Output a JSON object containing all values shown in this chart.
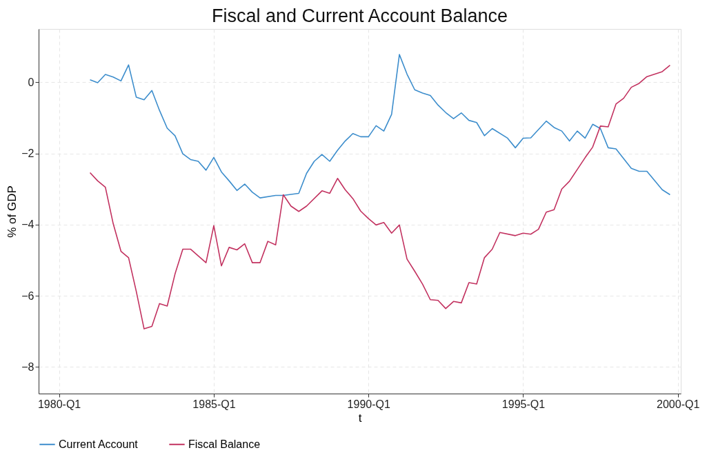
{
  "chart_data": {
    "type": "line",
    "title": "Fiscal and Current Account Balance",
    "xlabel": "t",
    "ylabel": "% of GDP",
    "xlim": [
      "1979-05-05",
      "2000-02-05"
    ],
    "ylim": [
      -8.75,
      1.5
    ],
    "xticks": [
      {
        "value": "1980-01",
        "label": "1980-Q1"
      },
      {
        "value": "1985-01",
        "label": "1985-Q1"
      },
      {
        "value": "1990-01",
        "label": "1990-Q1"
      },
      {
        "value": "1995-01",
        "label": "1995-Q1"
      },
      {
        "value": "2000-01",
        "label": "2000-Q1"
      }
    ],
    "yticks": [
      -8,
      -6,
      -4,
      -2,
      0
    ],
    "grid": true,
    "legend": "bottom",
    "line_style": "solid",
    "series": [
      {
        "name": "Current Account",
        "color": "#3c8dcc",
        "x": [
          "1981-01",
          "1981-04",
          "1981-07",
          "1981-10",
          "1982-01",
          "1982-04",
          "1982-07",
          "1982-10",
          "1983-01",
          "1983-04",
          "1983-07",
          "1983-10",
          "1984-01",
          "1984-04",
          "1984-07",
          "1984-10",
          "1985-01",
          "1985-04",
          "1985-07",
          "1985-10",
          "1986-01",
          "1986-04",
          "1986-07",
          "1987-01",
          "1987-04",
          "1987-10",
          "1988-01",
          "1988-04",
          "1988-07",
          "1988-10",
          "1989-01",
          "1989-04",
          "1989-07",
          "1989-10",
          "1990-01",
          "1990-04",
          "1990-07",
          "1990-10",
          "1991-01",
          "1991-04",
          "1991-07",
          "1991-10",
          "1992-01",
          "1992-04",
          "1992-07",
          "1992-10",
          "1993-01",
          "1993-04",
          "1993-07",
          "1993-10",
          "1994-01",
          "1994-07",
          "1994-10",
          "1995-01",
          "1995-04",
          "1995-10",
          "1996-01",
          "1996-04",
          "1996-07",
          "1996-10",
          "1997-01",
          "1997-04",
          "1997-07",
          "1997-10",
          "1998-01",
          "1998-07",
          "1998-10",
          "1999-01",
          "1999-07",
          "1999-10"
        ],
        "values": [
          0.07,
          -0.01,
          0.22,
          0.15,
          0.04,
          0.49,
          -0.42,
          -0.49,
          -0.23,
          -0.79,
          -1.29,
          -1.5,
          -2.01,
          -2.17,
          -2.22,
          -2.47,
          -2.11,
          -2.52,
          -2.77,
          -3.04,
          -2.86,
          -3.09,
          -3.25,
          -3.18,
          -3.18,
          -3.12,
          -2.56,
          -2.22,
          -2.03,
          -2.22,
          -1.91,
          -1.65,
          -1.44,
          -1.53,
          -1.53,
          -1.22,
          -1.37,
          -0.9,
          0.78,
          0.23,
          -0.21,
          -0.3,
          -0.37,
          -0.64,
          -0.85,
          -1.02,
          -0.86,
          -1.07,
          -1.13,
          -1.5,
          -1.3,
          -1.57,
          -1.84,
          -1.57,
          -1.56,
          -1.09,
          -1.27,
          -1.37,
          -1.65,
          -1.37,
          -1.57,
          -1.18,
          -1.3,
          -1.84,
          -1.87,
          -2.42,
          -2.5,
          -2.5,
          -3.02,
          -3.16
        ]
      },
      {
        "name": "Fiscal Balance",
        "color": "#c2315f",
        "x": [
          "1981-01",
          "1981-04",
          "1981-07",
          "1981-10",
          "1982-01",
          "1982-04",
          "1982-07",
          "1982-10",
          "1983-01",
          "1983-04",
          "1983-07",
          "1983-10",
          "1984-01",
          "1984-04",
          "1984-10",
          "1985-01",
          "1985-04",
          "1985-07",
          "1985-10",
          "1986-01",
          "1986-04",
          "1986-07",
          "1986-10",
          "1987-01",
          "1987-04",
          "1987-07",
          "1987-10",
          "1988-01",
          "1988-07",
          "1988-10",
          "1989-01",
          "1989-04",
          "1989-07",
          "1989-10",
          "1990-01",
          "1990-04",
          "1990-07",
          "1990-10",
          "1991-01",
          "1991-04",
          "1991-07",
          "1991-10",
          "1992-01",
          "1992-04",
          "1992-07",
          "1992-10",
          "1993-01",
          "1993-04",
          "1993-07",
          "1993-10",
          "1994-01",
          "1994-04",
          "1994-10",
          "1995-01",
          "1995-04",
          "1995-07",
          "1995-10",
          "1996-01",
          "1996-04",
          "1996-07",
          "1996-10",
          "1997-01",
          "1997-04",
          "1997-07",
          "1997-10",
          "1998-01",
          "1998-04",
          "1998-07",
          "1998-10",
          "1999-01",
          "1999-07",
          "1999-10"
        ],
        "values": [
          -2.54,
          -2.77,
          -2.95,
          -3.97,
          -4.75,
          -4.93,
          -5.88,
          -6.93,
          -6.86,
          -6.22,
          -6.29,
          -5.39,
          -4.69,
          -4.69,
          -5.07,
          -4.03,
          -5.16,
          -4.64,
          -4.71,
          -4.54,
          -5.07,
          -5.07,
          -4.47,
          -4.57,
          -3.16,
          -3.48,
          -3.63,
          -3.48,
          -3.05,
          -3.12,
          -2.7,
          -3.02,
          -3.27,
          -3.62,
          -3.83,
          -4.01,
          -3.94,
          -4.24,
          -4.01,
          -4.97,
          -5.31,
          -5.67,
          -6.11,
          -6.13,
          -6.36,
          -6.16,
          -6.2,
          -5.63,
          -5.67,
          -4.93,
          -4.69,
          -4.22,
          -4.31,
          -4.24,
          -4.27,
          -4.13,
          -3.65,
          -3.58,
          -3.0,
          -2.78,
          -2.45,
          -2.12,
          -1.82,
          -1.23,
          -1.25,
          -0.61,
          -0.45,
          -0.14,
          -0.03,
          0.16,
          0.3,
          0.48
        ]
      }
    ]
  }
}
